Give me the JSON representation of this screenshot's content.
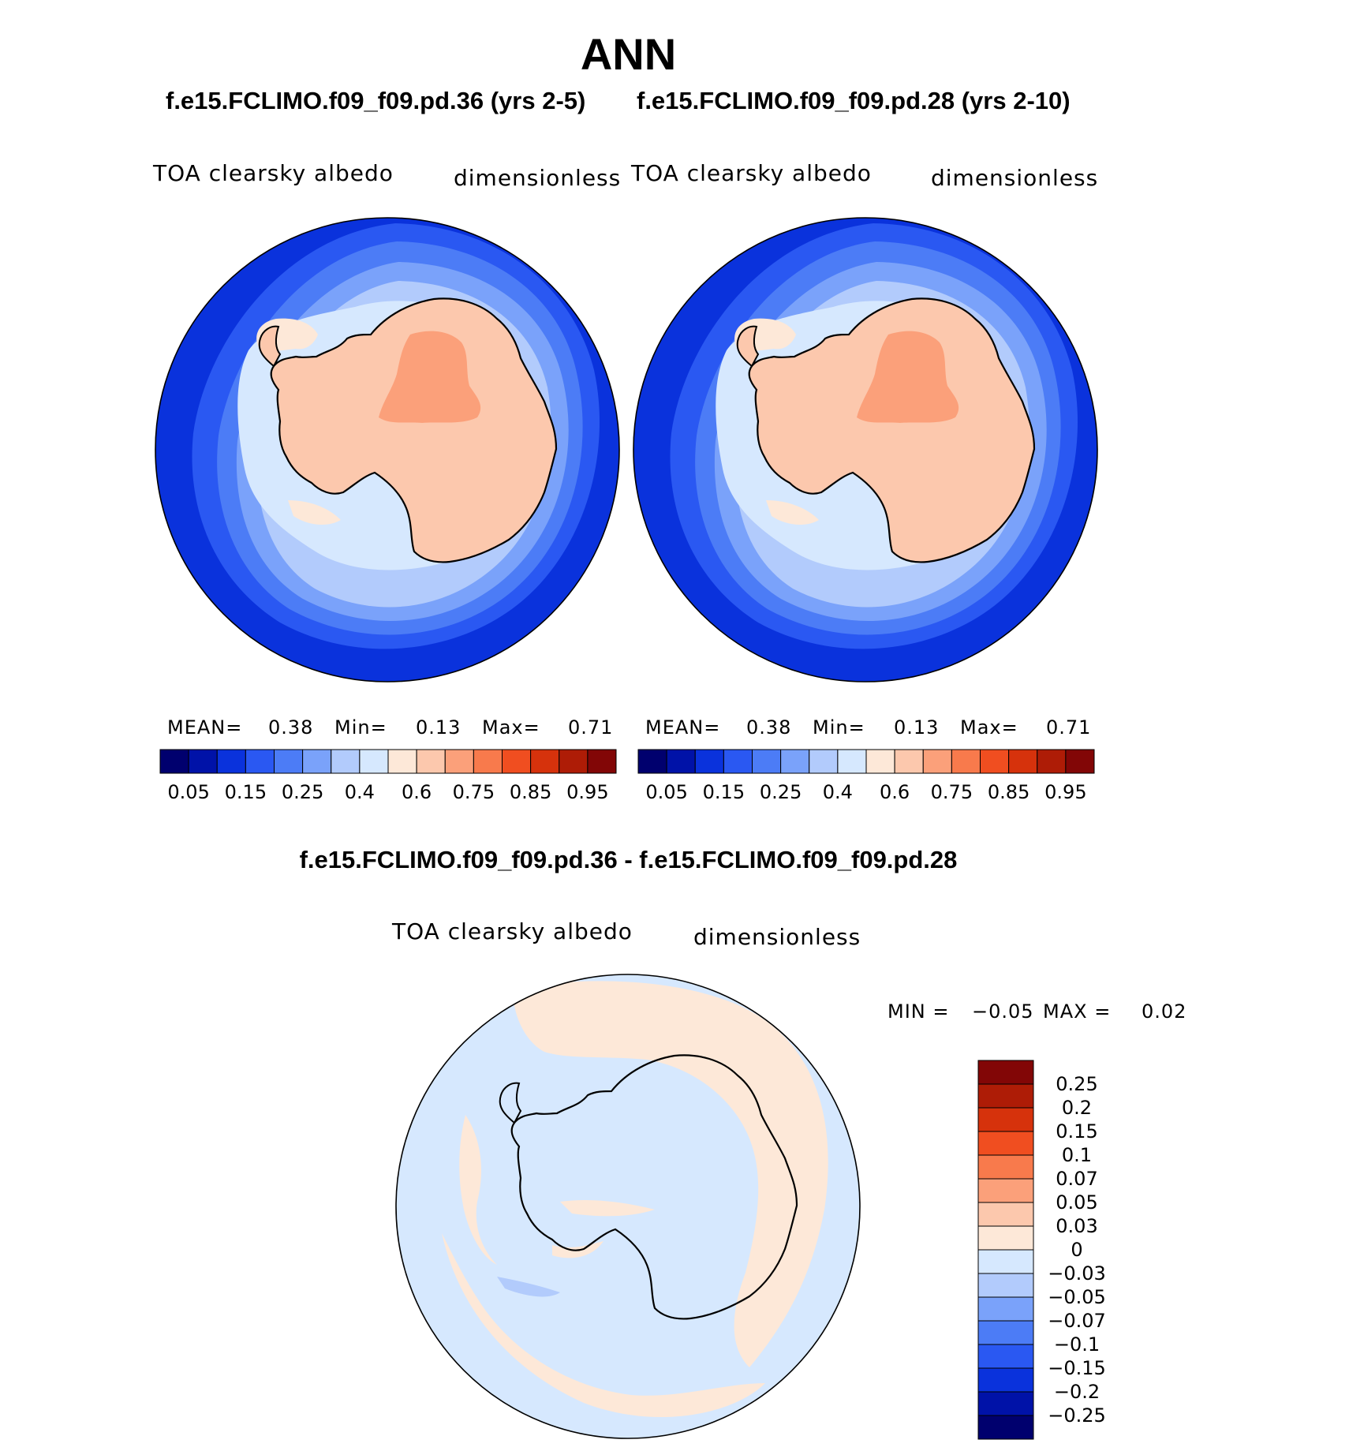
{
  "title": "ANN",
  "panels": [
    {
      "case_title": "f.e15.FCLIMO.f09_f09.pd.36 (yrs 2-5)",
      "variable": "TOA clearsky albedo",
      "units": "dimensionless",
      "stats": {
        "mean_label": "MEAN=",
        "mean": "0.38",
        "min_label": "Min=",
        "min": "0.13",
        "max_label": "Max=",
        "max": "0.71"
      }
    },
    {
      "case_title": "f.e15.FCLIMO.f09_f09.pd.28 (yrs 2-10)",
      "variable": "TOA clearsky albedo",
      "units": "dimensionless",
      "stats": {
        "mean_label": "MEAN=",
        "mean": "0.38",
        "min_label": "Min=",
        "min": "0.13",
        "max_label": "Max=",
        "max": "0.71"
      }
    }
  ],
  "colorbar": {
    "colors": [
      "#00006e",
      "#0012a8",
      "#0a32dc",
      "#2a58f2",
      "#4c7cf6",
      "#7aa2fa",
      "#b2cbfc",
      "#d6e8fe",
      "#fde8d8",
      "#fcc8ad",
      "#fba07a",
      "#f87a4c",
      "#f04e20",
      "#d6320c",
      "#ae1c06",
      "#820606"
    ],
    "ticks": [
      "0.05",
      "0.15",
      "0.25",
      "0.4",
      "0.6",
      "0.75",
      "0.85",
      "0.95"
    ]
  },
  "difference": {
    "title": "f.e15.FCLIMO.f09_f09.pd.36 - f.e15.FCLIMO.f09_f09.pd.28",
    "variable": "TOA clearsky albedo",
    "units": "dimensionless",
    "min_label": "MIN =",
    "min": "−0.05",
    "max_label": "MAX =",
    "max": "0.02",
    "colorbar": {
      "colors": [
        "#820606",
        "#ae1c06",
        "#d6320c",
        "#f04e20",
        "#f87a4c",
        "#fba07a",
        "#fcc8ad",
        "#fde8d8",
        "#d6e8fe",
        "#b2cbfc",
        "#7aa2fa",
        "#4c7cf6",
        "#2a58f2",
        "#0a32dc",
        "#0012a8",
        "#00006e"
      ],
      "ticks": [
        "0.25",
        "0.2",
        "0.15",
        "0.1",
        "0.07",
        "0.05",
        "0.03",
        "0",
        "−0.03",
        "−0.05",
        "−0.07",
        "−0.1",
        "−0.15",
        "−0.2",
        "−0.25"
      ]
    }
  },
  "map_colors": {
    "ocean_deep": "#0a32dc",
    "ocean_mid": "#2a58f2",
    "ring_1": "#4c7cf6",
    "ring_2": "#7aa2fa",
    "ring_3": "#b2cbfc",
    "ring_4": "#d6e8fe",
    "shelf": "#fde8d8",
    "land": "#fcc8ad",
    "plateau": "#fba07a",
    "diff_neg": "#d6e8fe",
    "diff_pos": "#fde8d8",
    "diff_neg2": "#b2cbfc"
  }
}
